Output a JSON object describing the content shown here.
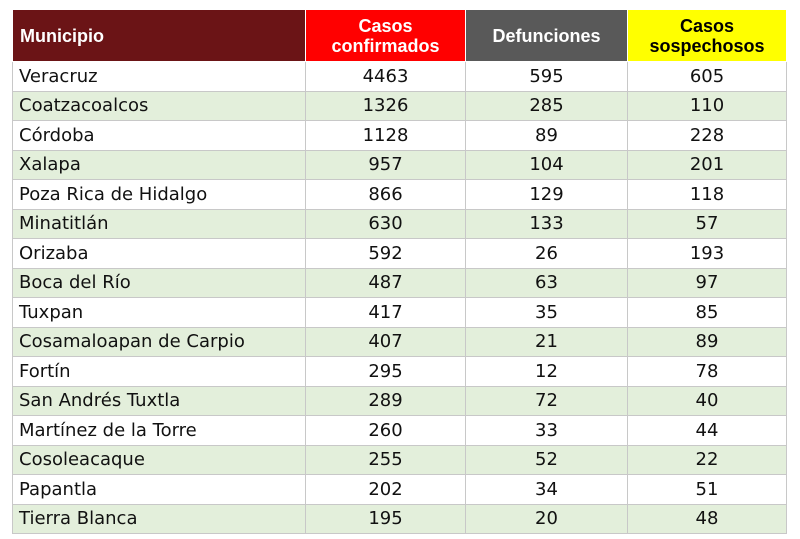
{
  "table": {
    "headers": {
      "municipio": "Municipio",
      "confirmados": [
        "Casos",
        "confirmados"
      ],
      "defunciones": "Defunciones",
      "sospechosos": [
        "Casos",
        "sospechosos"
      ]
    },
    "colors": {
      "municipio_header": "#6b1416",
      "confirmados_header": "#ff0000",
      "defunciones_header": "#595959",
      "sospechosos_header": "#ffff00",
      "stripe": "#e3efdb"
    },
    "rows": [
      {
        "municipio": "Veracruz",
        "confirmados": "4463",
        "defunciones": "595",
        "sospechosos": "605"
      },
      {
        "municipio": "Coatzacoalcos",
        "confirmados": "1326",
        "defunciones": "285",
        "sospechosos": "110"
      },
      {
        "municipio": "Córdoba",
        "confirmados": "1128",
        "defunciones": "89",
        "sospechosos": "228"
      },
      {
        "municipio": "Xalapa",
        "confirmados": "957",
        "defunciones": "104",
        "sospechosos": "201"
      },
      {
        "municipio": "Poza Rica de Hidalgo",
        "confirmados": "866",
        "defunciones": "129",
        "sospechosos": "118"
      },
      {
        "municipio": "Minatitlán",
        "confirmados": "630",
        "defunciones": "133",
        "sospechosos": "57"
      },
      {
        "municipio": "Orizaba",
        "confirmados": "592",
        "defunciones": "26",
        "sospechosos": "193"
      },
      {
        "municipio": "Boca del Río",
        "confirmados": "487",
        "defunciones": "63",
        "sospechosos": "97"
      },
      {
        "municipio": "Tuxpan",
        "confirmados": "417",
        "defunciones": "35",
        "sospechosos": "85"
      },
      {
        "municipio": "Cosamaloapan de Carpio",
        "confirmados": "407",
        "defunciones": "21",
        "sospechosos": "89"
      },
      {
        "municipio": "Fortín",
        "confirmados": "295",
        "defunciones": "12",
        "sospechosos": "78"
      },
      {
        "municipio": "San Andrés Tuxtla",
        "confirmados": "289",
        "defunciones": "72",
        "sospechosos": "40"
      },
      {
        "municipio": "Martínez de la Torre",
        "confirmados": "260",
        "defunciones": "33",
        "sospechosos": "44"
      },
      {
        "municipio": "Cosoleacaque",
        "confirmados": "255",
        "defunciones": "52",
        "sospechosos": "22"
      },
      {
        "municipio": "Papantla",
        "confirmados": "202",
        "defunciones": "34",
        "sospechosos": "51"
      },
      {
        "municipio": "Tierra Blanca",
        "confirmados": "195",
        "defunciones": "20",
        "sospechosos": "48"
      }
    ]
  }
}
